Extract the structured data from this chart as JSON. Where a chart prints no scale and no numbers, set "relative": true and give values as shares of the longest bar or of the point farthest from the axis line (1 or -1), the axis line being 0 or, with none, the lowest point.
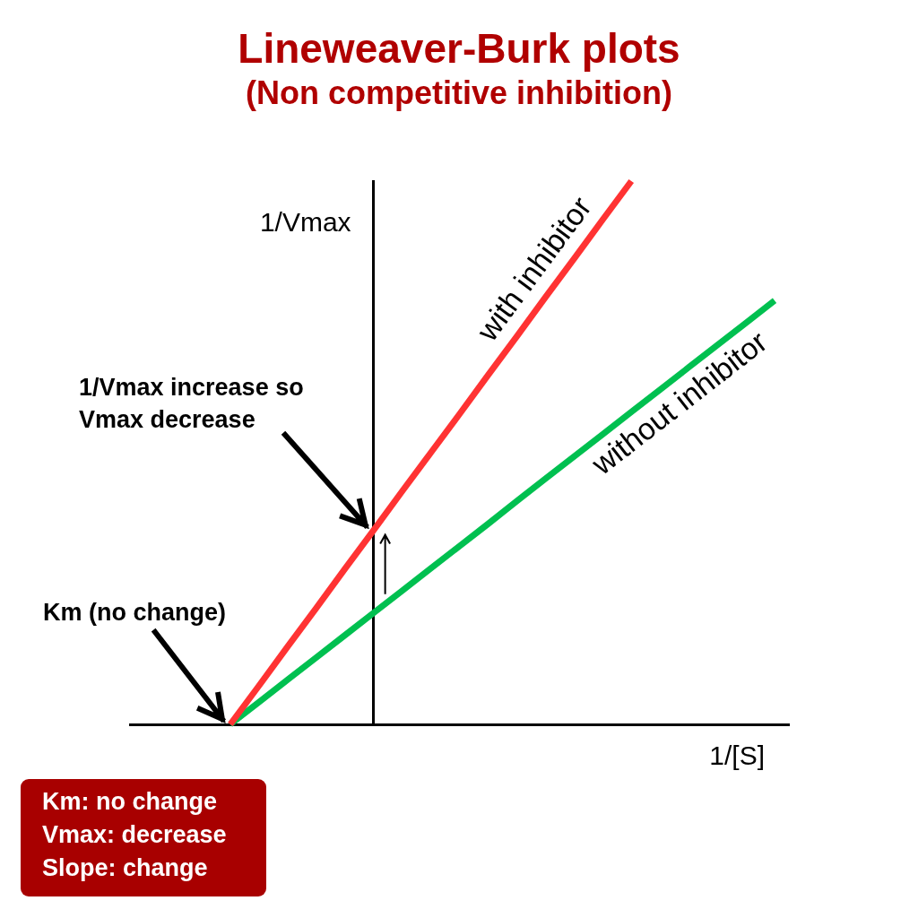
{
  "chart_data": {
    "type": "line",
    "title": "Lineweaver-Burk plots",
    "subtitle": "(Non competitive inhibition)",
    "xlabel": "1/[S]",
    "ylabel": "1/Vmax",
    "relative": true,
    "marker": "none",
    "line_style": "solid",
    "categories": [
      null,
      null,
      null,
      null,
      null,
      null,
      null,
      null,
      null,
      null,
      null,
      null,
      null,
      null,
      null,
      null,
      null,
      null,
      null,
      null,
      null,
      null,
      null
    ],
    "series": [
      {
        "name": "with inhibitor",
        "color": "#ff3333",
        "values": [
          null,
          null,
          null,
          0,
          0.071,
          0.143,
          0.214,
          0.286,
          0.357,
          0.429,
          0.5,
          0.571,
          0.643,
          0.714,
          0.786,
          0.857,
          0.929,
          1,
          null,
          null,
          null,
          null,
          null
        ]
      },
      {
        "name": "without inhibitor",
        "color": "#00c050",
        "values": [
          null,
          null,
          null,
          0,
          0.041,
          0.082,
          0.123,
          0.164,
          0.205,
          0.246,
          0.287,
          0.328,
          0.369,
          0.411,
          0.452,
          0.493,
          0.534,
          0.575,
          0.616,
          0.657,
          0.698,
          0.739,
          0.78
        ]
      }
    ],
    "annotations": [
      "1/Vmax increase so Vmax decrease",
      "Km (no change)",
      "Km: no change",
      "Vmax: decrease",
      "Slope: change"
    ]
  }
}
